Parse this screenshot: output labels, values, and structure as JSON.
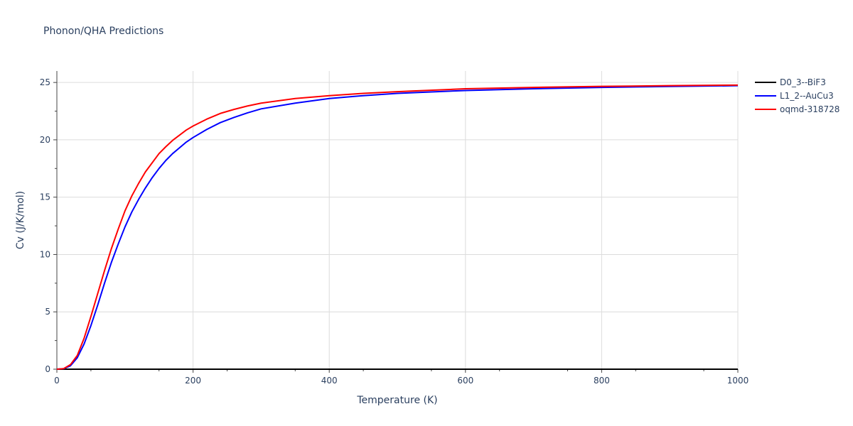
{
  "chart_data": {
    "type": "line",
    "title": "Phonon/QHA Predictions",
    "xlabel": "Temperature (K)",
    "ylabel": "Cv (J/K/mol)",
    "xlim": [
      0,
      1000
    ],
    "ylim": [
      0,
      26
    ],
    "xticks": [
      0,
      200,
      400,
      600,
      800,
      1000
    ],
    "yticks": [
      0,
      5,
      10,
      15,
      20,
      25
    ],
    "grid": true,
    "legend_position": "top-right",
    "series": [
      {
        "name": "D0_3--BiF3",
        "color": "#000000",
        "x": [
          0,
          1000
        ],
        "y": [
          0,
          0
        ]
      },
      {
        "name": "L1_2--AuCu3",
        "color": "#0000ff",
        "x": [
          0,
          10,
          20,
          30,
          40,
          50,
          60,
          70,
          80,
          90,
          100,
          110,
          120,
          130,
          140,
          150,
          160,
          170,
          180,
          190,
          200,
          220,
          240,
          260,
          280,
          300,
          350,
          400,
          450,
          500,
          600,
          700,
          800,
          900,
          1000
        ],
        "y": [
          0,
          0.05,
          0.3,
          1.0,
          2.2,
          3.8,
          5.6,
          7.5,
          9.3,
          10.9,
          12.4,
          13.7,
          14.8,
          15.8,
          16.7,
          17.5,
          18.2,
          18.8,
          19.3,
          19.8,
          20.2,
          20.9,
          21.5,
          21.95,
          22.35,
          22.7,
          23.2,
          23.6,
          23.85,
          24.05,
          24.3,
          24.45,
          24.57,
          24.65,
          24.72
        ]
      },
      {
        "name": "oqmd-318728",
        "color": "#ff0000",
        "x": [
          0,
          10,
          20,
          30,
          40,
          50,
          60,
          70,
          80,
          90,
          100,
          110,
          120,
          130,
          140,
          150,
          160,
          170,
          180,
          190,
          200,
          220,
          240,
          260,
          280,
          300,
          350,
          400,
          450,
          500,
          600,
          700,
          800,
          900,
          1000
        ],
        "y": [
          0,
          0.05,
          0.4,
          1.2,
          2.7,
          4.6,
          6.6,
          8.6,
          10.5,
          12.2,
          13.8,
          15.1,
          16.2,
          17.2,
          18.0,
          18.8,
          19.4,
          19.95,
          20.4,
          20.85,
          21.2,
          21.8,
          22.3,
          22.65,
          22.95,
          23.2,
          23.6,
          23.85,
          24.05,
          24.2,
          24.45,
          24.57,
          24.66,
          24.72,
          24.77
        ]
      }
    ]
  }
}
